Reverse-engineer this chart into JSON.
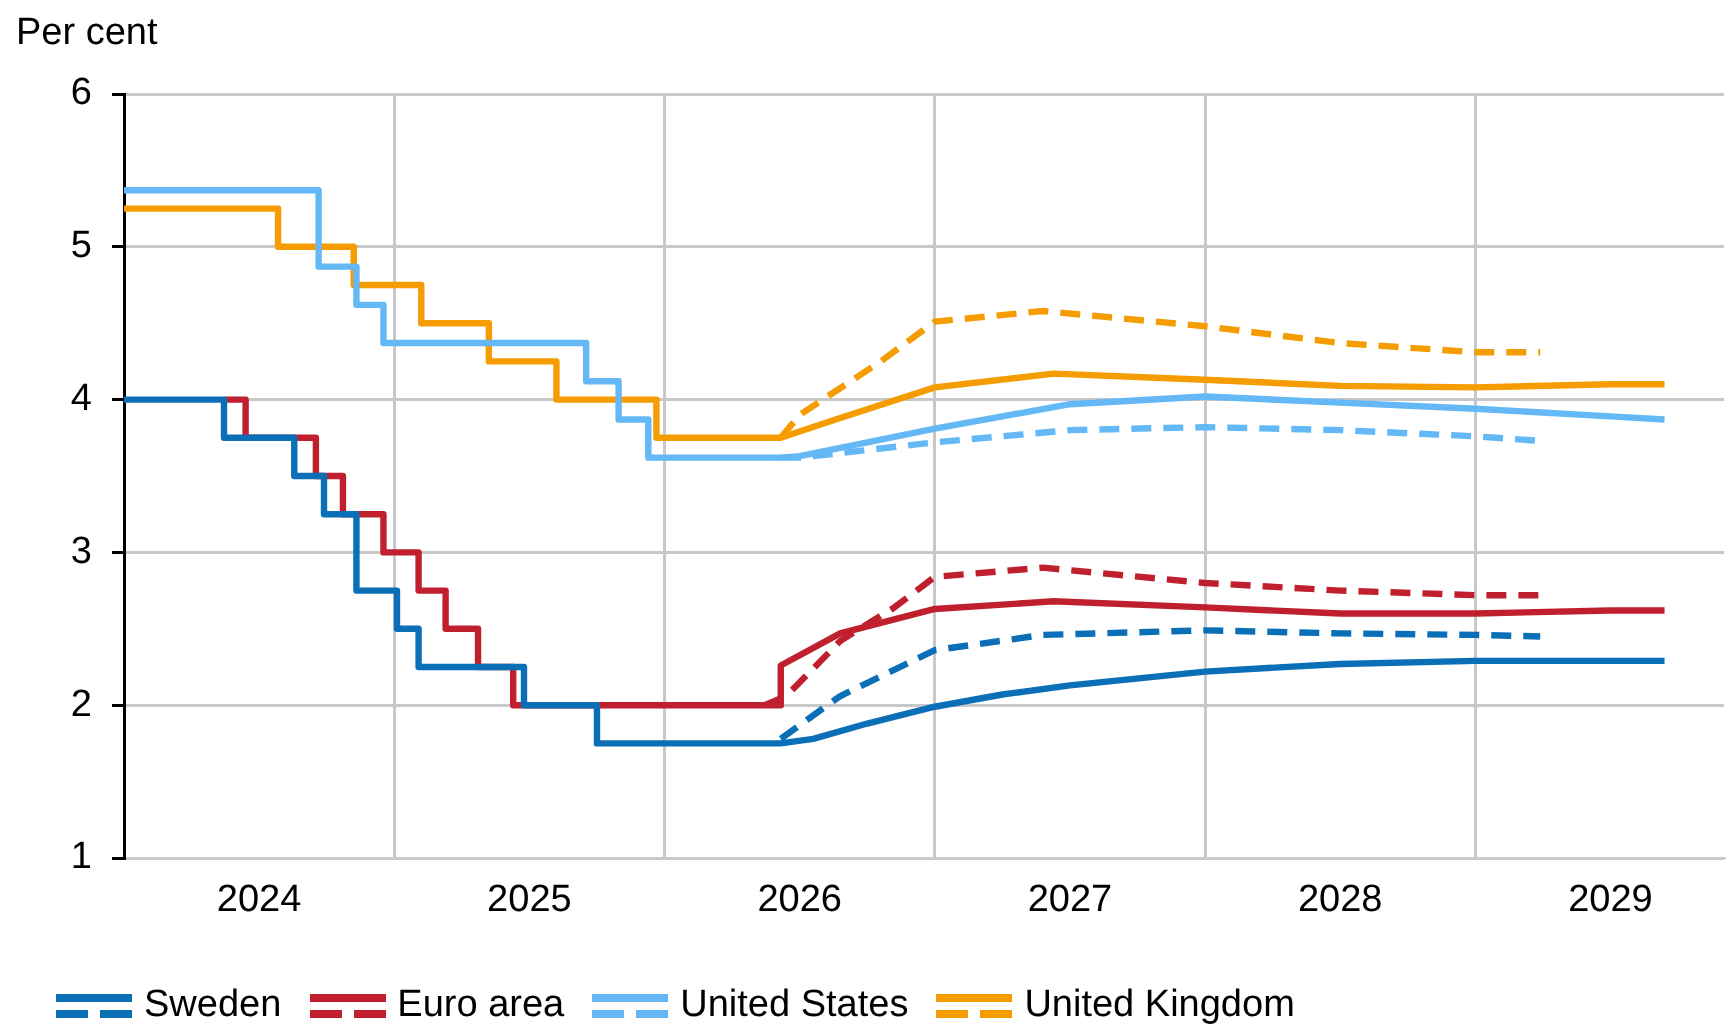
{
  "chart_data": {
    "type": "line",
    "ylabel": "Per cent",
    "xlim": [
      2024,
      2029.92
    ],
    "ylim": [
      1,
      6
    ],
    "yticks": [
      1,
      2,
      3,
      4,
      5,
      6
    ],
    "xticks": [
      {
        "value": 2024.5,
        "label": "2024"
      },
      {
        "value": 2025,
        "label": null
      },
      {
        "value": 2025.5,
        "label": "2025"
      },
      {
        "value": 2026,
        "label": null
      },
      {
        "value": 2026.5,
        "label": "2026"
      },
      {
        "value": 2027,
        "label": null
      },
      {
        "value": 2027.5,
        "label": "2027"
      },
      {
        "value": 2028,
        "label": null
      },
      {
        "value": 2028.5,
        "label": "2028"
      },
      {
        "value": 2029,
        "label": null
      },
      {
        "value": 2029.5,
        "label": "2029"
      }
    ],
    "grid": true,
    "legend": "bottom",
    "marker": "none",
    "series": [
      {
        "name": "Sweden",
        "color": "#0b6fb8",
        "line_style": "solid",
        "x": [
          2024,
          2024.37,
          2024.37,
          2024.63,
          2024.63,
          2024.74,
          2024.74,
          2024.86,
          2024.86,
          2025.01,
          2025.01,
          2025.09,
          2025.09,
          2025.48,
          2025.48,
          2025.75,
          2025.75,
          2026.43,
          2026.55,
          2026.75,
          2027,
          2027.25,
          2027.5,
          2028,
          2028.5,
          2029,
          2029.5,
          2029.7
        ],
        "values": [
          4,
          4,
          3.75,
          3.75,
          3.5,
          3.5,
          3.25,
          3.25,
          2.75,
          2.75,
          2.5,
          2.5,
          2.25,
          2.25,
          2,
          2,
          1.75,
          1.75,
          1.78,
          1.88,
          1.99,
          2.07,
          2.13,
          2.22,
          2.27,
          2.29,
          2.29,
          2.29
        ]
      },
      {
        "name": "Euro area",
        "color": "#c0202e",
        "line_style": "solid",
        "x": [
          2024.37,
          2024.45,
          2024.45,
          2024.71,
          2024.71,
          2024.81,
          2024.81,
          2024.96,
          2024.96,
          2025.09,
          2025.09,
          2025.19,
          2025.19,
          2025.31,
          2025.31,
          2025.44,
          2025.44,
          2026.43,
          2026.43,
          2026.65,
          2027,
          2027.44,
          2028,
          2028.5,
          2029,
          2029.5,
          2029.7
        ],
        "values": [
          4,
          4,
          3.75,
          3.75,
          3.5,
          3.5,
          3.25,
          3.25,
          3,
          3,
          2.75,
          2.75,
          2.5,
          2.5,
          2.25,
          2.25,
          2,
          2,
          2.26,
          2.47,
          2.63,
          2.68,
          2.64,
          2.6,
          2.6,
          2.62,
          2.62
        ]
      },
      {
        "name": "United States",
        "color": "#63b8f5",
        "line_style": "solid",
        "x": [
          2024,
          2024.72,
          2024.72,
          2024.86,
          2024.86,
          2024.96,
          2024.96,
          2025.71,
          2025.71,
          2025.83,
          2025.83,
          2025.94,
          2025.94,
          2026.43,
          2026.5,
          2027,
          2027.5,
          2028,
          2028.5,
          2029,
          2029.5,
          2029.7
        ],
        "values": [
          5.37,
          5.37,
          4.87,
          4.87,
          4.62,
          4.62,
          4.37,
          4.37,
          4.12,
          4.12,
          3.87,
          3.87,
          3.62,
          3.62,
          3.63,
          3.81,
          3.97,
          4.02,
          3.98,
          3.94,
          3.89,
          3.87
        ]
      },
      {
        "name": "United Kingdom",
        "color": "#f59c00",
        "line_style": "solid",
        "x": [
          2024,
          2024.57,
          2024.57,
          2024.85,
          2024.85,
          2025.1,
          2025.1,
          2025.35,
          2025.35,
          2025.6,
          2025.6,
          2025.97,
          2025.97,
          2026.43,
          2026.65,
          2027,
          2027.44,
          2028,
          2028.5,
          2029,
          2029.5,
          2029.7
        ],
        "values": [
          5.25,
          5.25,
          5,
          5,
          4.75,
          4.75,
          4.5,
          4.5,
          4.25,
          4.25,
          4,
          4,
          3.75,
          3.75,
          3.88,
          4.08,
          4.17,
          4.13,
          4.09,
          4.08,
          4.1,
          4.1
        ]
      },
      {
        "color": "#0b6fb8",
        "line_style": "dashed",
        "x": [
          2026.43,
          2026.65,
          2027,
          2027.4,
          2028,
          2028.5,
          2029,
          2029.24
        ],
        "values": [
          1.78,
          2.06,
          2.36,
          2.46,
          2.49,
          2.47,
          2.46,
          2.45
        ]
      },
      {
        "color": "#c0202e",
        "line_style": "dashed",
        "x": [
          2026.37,
          2026.45,
          2026.65,
          2026.85,
          2027,
          2027.4,
          2028,
          2028.5,
          2029,
          2029.24
        ],
        "values": [
          2,
          2.06,
          2.42,
          2.64,
          2.84,
          2.9,
          2.8,
          2.75,
          2.72,
          2.72
        ]
      },
      {
        "color": "#63b8f5",
        "line_style": "dashed",
        "x": [
          2026.43,
          2026.5,
          2027,
          2027.5,
          2028,
          2028.5,
          2029,
          2029.24
        ],
        "values": [
          3.62,
          3.62,
          3.72,
          3.8,
          3.82,
          3.8,
          3.76,
          3.73
        ]
      },
      {
        "color": "#f59c00",
        "line_style": "dashed",
        "x": [
          2026.43,
          2026.5,
          2026.8,
          2027,
          2027.4,
          2028,
          2028.5,
          2029,
          2029.24
        ],
        "values": [
          3.75,
          3.9,
          4.25,
          4.51,
          4.58,
          4.48,
          4.37,
          4.31,
          4.31
        ]
      }
    ]
  }
}
